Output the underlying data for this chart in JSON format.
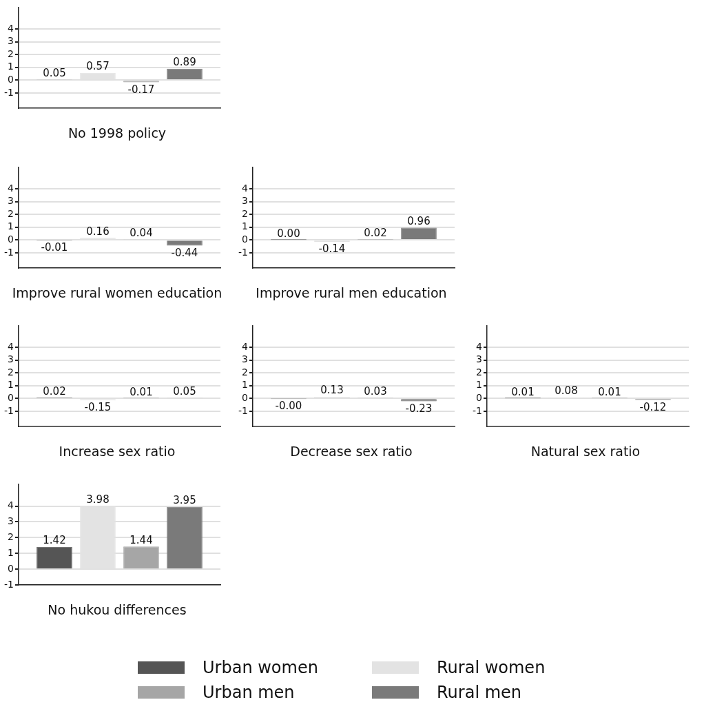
{
  "chart_data": [
    {
      "type": "bar",
      "title": "No 1998 policy",
      "categories": [
        null
      ],
      "ylim": [
        -2.2,
        5.7
      ],
      "yticks": [
        -1,
        0,
        1,
        2,
        3,
        4
      ],
      "grid": "y",
      "legend": false,
      "series": [
        {
          "color": "#555555",
          "values": [
            0.05
          ],
          "value_labels": [
            "0.05"
          ]
        },
        {
          "color": "#e3e3e3",
          "values": [
            0.57
          ],
          "value_labels": [
            "0.57"
          ]
        },
        {
          "color": "#a6a6a6",
          "values": [
            -0.17
          ],
          "value_labels": [
            "-0.17"
          ]
        },
        {
          "color": "#7a7a7a",
          "values": [
            0.89
          ],
          "value_labels": [
            "0.89"
          ]
        }
      ]
    },
    {
      "type": "bar",
      "title": "Improve rural women education",
      "categories": [
        null
      ],
      "ylim": [
        -2.2,
        5.7
      ],
      "yticks": [
        -1,
        0,
        1,
        2,
        3,
        4
      ],
      "grid": "y",
      "legend": false,
      "series": [
        {
          "color": "#555555",
          "values": [
            -0.01
          ],
          "value_labels": [
            "-0.01"
          ]
        },
        {
          "color": "#e3e3e3",
          "values": [
            0.16
          ],
          "value_labels": [
            "0.16"
          ]
        },
        {
          "color": "#a6a6a6",
          "values": [
            0.04
          ],
          "value_labels": [
            "0.04"
          ]
        },
        {
          "color": "#7a7a7a",
          "values": [
            -0.44
          ],
          "value_labels": [
            "-0.44"
          ]
        }
      ]
    },
    {
      "type": "bar",
      "title": "Improve rural men education",
      "categories": [
        null
      ],
      "ylim": [
        -2.2,
        5.7
      ],
      "yticks": [
        -1,
        0,
        1,
        2,
        3,
        4
      ],
      "grid": "y",
      "legend": false,
      "series": [
        {
          "color": "#555555",
          "values": [
            0.004
          ],
          "value_labels": [
            "0.00"
          ]
        },
        {
          "color": "#e3e3e3",
          "values": [
            -0.14
          ],
          "value_labels": [
            "-0.14"
          ]
        },
        {
          "color": "#a6a6a6",
          "values": [
            0.02
          ],
          "value_labels": [
            "0.02"
          ]
        },
        {
          "color": "#7a7a7a",
          "values": [
            0.96
          ],
          "value_labels": [
            "0.96"
          ]
        }
      ]
    },
    {
      "type": "bar",
      "title": "Increase sex ratio",
      "categories": [
        null
      ],
      "ylim": [
        -2.2,
        5.7
      ],
      "yticks": [
        -1,
        0,
        1,
        2,
        3,
        4
      ],
      "grid": "y",
      "legend": false,
      "series": [
        {
          "color": "#555555",
          "values": [
            0.02
          ],
          "value_labels": [
            "0.02"
          ]
        },
        {
          "color": "#e3e3e3",
          "values": [
            -0.15
          ],
          "value_labels": [
            "-0.15"
          ]
        },
        {
          "color": "#a6a6a6",
          "values": [
            0.01
          ],
          "value_labels": [
            "0.01"
          ]
        },
        {
          "color": "#7a7a7a",
          "values": [
            0.05
          ],
          "value_labels": [
            "0.05"
          ]
        }
      ]
    },
    {
      "type": "bar",
      "title": "Decrease sex ratio",
      "categories": [
        null
      ],
      "ylim": [
        -2.2,
        5.7
      ],
      "yticks": [
        -1,
        0,
        1,
        2,
        3,
        4
      ],
      "grid": "y",
      "legend": false,
      "series": [
        {
          "color": "#555555",
          "values": [
            -0.004
          ],
          "value_labels": [
            "-0.00"
          ]
        },
        {
          "color": "#e3e3e3",
          "values": [
            0.13
          ],
          "value_labels": [
            "0.13"
          ]
        },
        {
          "color": "#a6a6a6",
          "values": [
            0.03
          ],
          "value_labels": [
            "0.03"
          ]
        },
        {
          "color": "#7a7a7a",
          "values": [
            -0.23
          ],
          "value_labels": [
            "-0.23"
          ]
        }
      ]
    },
    {
      "type": "bar",
      "title": "Natural sex ratio",
      "categories": [
        null
      ],
      "ylim": [
        -2.2,
        5.7
      ],
      "yticks": [
        -1,
        0,
        1,
        2,
        3,
        4
      ],
      "grid": "y",
      "legend": false,
      "series": [
        {
          "color": "#555555",
          "values": [
            0.01
          ],
          "value_labels": [
            "0.01"
          ]
        },
        {
          "color": "#e3e3e3",
          "values": [
            0.08
          ],
          "value_labels": [
            "0.08"
          ]
        },
        {
          "color": "#a6a6a6",
          "values": [
            0.01
          ],
          "value_labels": [
            "0.01"
          ]
        },
        {
          "color": "#7a7a7a",
          "values": [
            -0.12
          ],
          "value_labels": [
            "-0.12"
          ]
        }
      ]
    },
    {
      "type": "bar",
      "title": "No hukou differences",
      "categories": [
        null
      ],
      "ylim": [
        -1,
        5.4
      ],
      "yticks": [
        -1,
        0,
        1,
        2,
        3,
        4
      ],
      "grid": "y",
      "legend": "bottom",
      "series": [
        {
          "name": "Urban women",
          "color": "#555555",
          "values": [
            1.42
          ],
          "value_labels": [
            "1.42"
          ]
        },
        {
          "name": "Rural women",
          "color": "#e3e3e3",
          "values": [
            3.98
          ],
          "value_labels": [
            "3.98"
          ]
        },
        {
          "name": "Urban men",
          "color": "#a6a6a6",
          "values": [
            1.44
          ],
          "value_labels": [
            "1.44"
          ]
        },
        {
          "name": "Rural men",
          "color": "#7a7a7a",
          "values": [
            3.95
          ],
          "value_labels": [
            "3.95"
          ]
        }
      ]
    }
  ]
}
